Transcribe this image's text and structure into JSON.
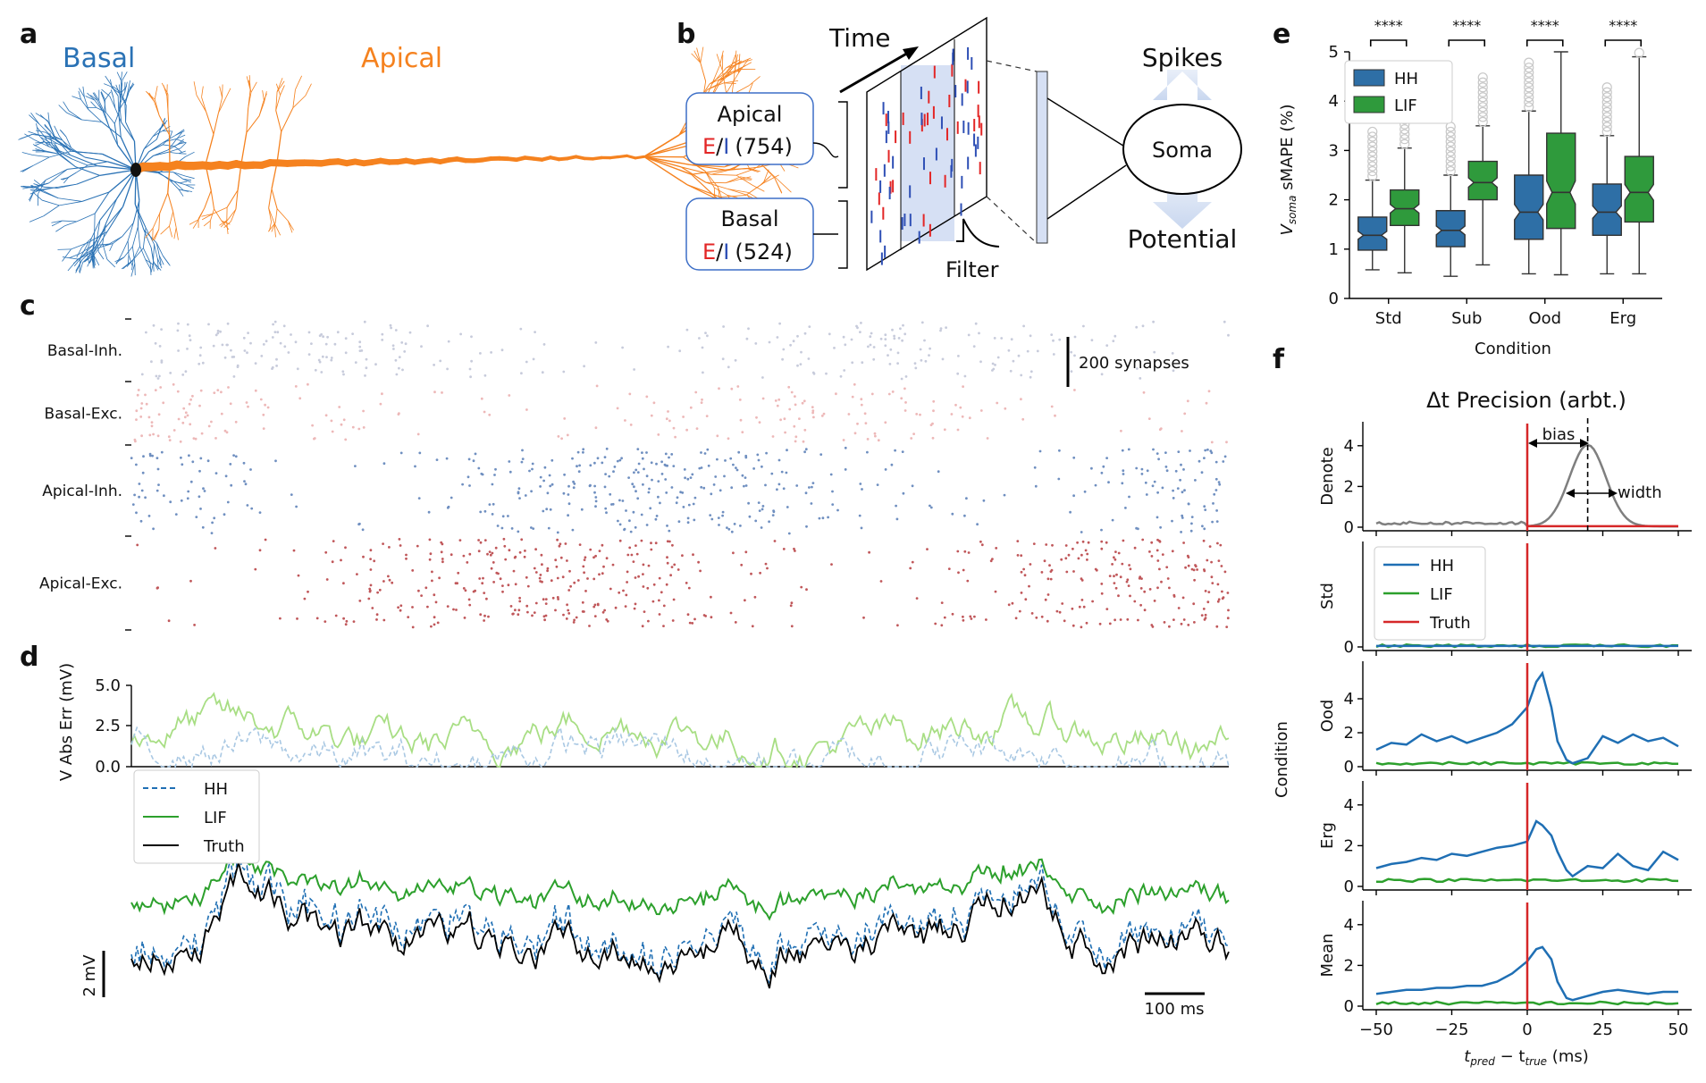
{
  "panels": {
    "a": {
      "label": "a",
      "basal": "Basal",
      "apical": "Apical",
      "basal_color": "#2a72b5",
      "apical_color": "#f5821f"
    },
    "b": {
      "label": "b",
      "time": "Time",
      "apical_box": "Apical",
      "apical_counts": "(754)",
      "basal_box": "Basal",
      "basal_counts": "(524)",
      "e": "E",
      "slash": "/",
      "i": "I",
      "filter": "Filter",
      "soma": "Soma",
      "spikes": "Spikes",
      "potential": "Potential"
    },
    "c": {
      "label": "c",
      "rows": [
        "Basal-Inh.",
        "Basal-Exc.",
        "Apical-Inh.",
        "Apical-Exc."
      ],
      "scalebar": "200 synapses",
      "colors": [
        "#c7cbdb",
        "#edb8b8",
        "#6f8fc0",
        "#c0575a"
      ]
    },
    "d": {
      "label": "d",
      "err_ylabel": "V Abs Err (mV)",
      "err_ticks": [
        "5.0",
        "2.5",
        "0.0"
      ],
      "legend": [
        "HH",
        "LIF",
        "Truth"
      ],
      "v_scale": "2 mV",
      "t_scale": "100 ms"
    },
    "e": {
      "label": "e"
    },
    "f": {
      "label": "f"
    }
  },
  "chart_data": [
    {
      "id": "e",
      "type": "box",
      "ylabel_main": "V",
      "ylabel_sub": "soma",
      "ylabel_rest": " sMAPE (%)",
      "xlabel": "Condition",
      "categories": [
        "Std",
        "Sub",
        "Ood",
        "Erg"
      ],
      "ylim": [
        0,
        5
      ],
      "yticks": [
        0,
        1,
        2,
        3,
        4,
        5
      ],
      "significance": [
        "****",
        "****",
        "****",
        "****"
      ],
      "series": [
        {
          "name": "HH",
          "color": "#2e6fa6",
          "boxes": [
            {
              "whislo": 0.58,
              "q1": 0.98,
              "med": 1.28,
              "q3": 1.65,
              "whishi": 2.4
            },
            {
              "whislo": 0.45,
              "q1": 1.05,
              "med": 1.38,
              "q3": 1.78,
              "whishi": 2.5
            },
            {
              "whislo": 0.5,
              "q1": 1.2,
              "med": 1.75,
              "q3": 2.5,
              "whishi": 3.8
            },
            {
              "whislo": 0.5,
              "q1": 1.28,
              "med": 1.75,
              "q3": 2.32,
              "whishi": 3.3
            }
          ]
        },
        {
          "name": "LIF",
          "color": "#2f9a3c",
          "boxes": [
            {
              "whislo": 0.52,
              "q1": 1.48,
              "med": 1.82,
              "q3": 2.2,
              "whishi": 3.05
            },
            {
              "whislo": 0.68,
              "q1": 2.0,
              "med": 2.35,
              "q3": 2.78,
              "whishi": 3.5
            },
            {
              "whislo": 0.48,
              "q1": 1.42,
              "med": 2.15,
              "q3": 3.35,
              "whishi": 5.0
            },
            {
              "whislo": 0.5,
              "q1": 1.55,
              "med": 2.15,
              "q3": 2.88,
              "whishi": 4.9
            }
          ]
        }
      ]
    },
    {
      "id": "f",
      "type": "line",
      "title": "Δt Precision (arbt.)",
      "xlabel_main": "t",
      "xlabel_sub1": "pred",
      "xlabel_mid": " − t",
      "xlabel_sub2": "true",
      "xlabel_unit": " (ms)",
      "ylabel": "Condition",
      "xlim": [
        -50,
        50
      ],
      "xticks": [
        -50,
        -25,
        0,
        25,
        50
      ],
      "xtick_labels": [
        "−50",
        "−25",
        "0",
        "25",
        "50"
      ],
      "legend": [
        "HH",
        "LIF",
        "Truth"
      ],
      "colors": {
        "HH": "#1f6fb4",
        "LIF": "#2ca02c",
        "Truth": "#d62728",
        "Denote": "#7f7f7f"
      },
      "annotations": {
        "bias": "bias",
        "width": "width"
      },
      "subplots": [
        {
          "name": "Denote",
          "ylim": [
            0,
            5
          ],
          "yticks": [
            0,
            2,
            4
          ],
          "gaussian": {
            "mean": 20,
            "sd": 6,
            "peak": 4.0,
            "baseline": 0.2
          }
        },
        {
          "name": "Std",
          "ylim": [
            0,
            5
          ],
          "yticks": [
            0
          ],
          "hh": [
            0.05,
            0.05
          ],
          "lif": [
            0.05,
            0.05
          ]
        },
        {
          "name": "Ood",
          "ylim": [
            0,
            6
          ],
          "yticks": [
            0,
            2,
            4
          ],
          "hh_x": [
            -50,
            -45,
            -40,
            -35,
            -30,
            -25,
            -20,
            -15,
            -10,
            -5,
            0,
            3,
            5,
            8,
            10,
            13,
            15,
            20,
            25,
            30,
            35,
            40,
            45,
            50
          ],
          "hh_y": [
            1.0,
            1.4,
            1.3,
            1.9,
            1.5,
            1.8,
            1.4,
            1.7,
            2.0,
            2.5,
            3.5,
            5.0,
            5.5,
            3.5,
            1.5,
            0.4,
            0.2,
            0.5,
            1.8,
            1.4,
            1.9,
            1.5,
            1.7,
            1.2
          ],
          "lif_level": 0.2
        },
        {
          "name": "Erg",
          "ylim": [
            0,
            5
          ],
          "yticks": [
            0,
            2,
            4
          ],
          "hh_x": [
            -50,
            -45,
            -40,
            -35,
            -30,
            -25,
            -20,
            -15,
            -10,
            -5,
            0,
            3,
            5,
            8,
            10,
            13,
            15,
            20,
            25,
            30,
            35,
            40,
            45,
            50
          ],
          "hh_y": [
            0.9,
            1.1,
            1.2,
            1.4,
            1.3,
            1.6,
            1.5,
            1.7,
            1.9,
            2.0,
            2.2,
            3.2,
            3.0,
            2.5,
            1.7,
            0.8,
            0.5,
            1.0,
            0.9,
            1.6,
            1.0,
            0.8,
            1.7,
            1.3
          ],
          "lif_level": 0.3
        },
        {
          "name": "Mean",
          "ylim": [
            0,
            5
          ],
          "yticks": [
            0,
            2,
            4
          ],
          "hh_x": [
            -50,
            -45,
            -40,
            -35,
            -30,
            -25,
            -20,
            -15,
            -10,
            -5,
            0,
            3,
            5,
            8,
            10,
            13,
            15,
            20,
            25,
            30,
            35,
            40,
            45,
            50
          ],
          "hh_y": [
            0.6,
            0.7,
            0.8,
            0.8,
            0.9,
            0.9,
            1.0,
            1.0,
            1.2,
            1.6,
            2.2,
            2.8,
            2.9,
            2.3,
            1.2,
            0.4,
            0.3,
            0.5,
            0.7,
            0.8,
            0.7,
            0.6,
            0.7,
            0.7
          ],
          "lif_level": 0.15
        }
      ]
    }
  ]
}
